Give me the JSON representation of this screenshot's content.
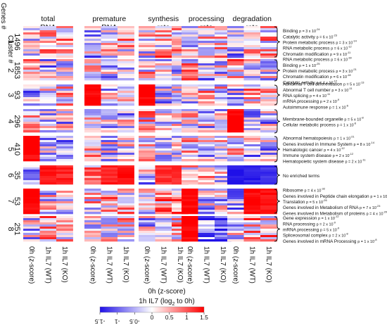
{
  "chart_data": {
    "type": "heatmap",
    "row_axis_labels": [
      "Cluster #",
      "Genes #"
    ],
    "panels": [
      {
        "title": [
          "total",
          "RNA"
        ]
      },
      {
        "title": [
          "premature",
          "RNA"
        ]
      },
      {
        "title": [
          "synthesis",
          "rate"
        ]
      },
      {
        "title": [
          "processing",
          "rate"
        ]
      },
      {
        "title": [
          "degradation",
          "rate"
        ]
      }
    ],
    "columns": [
      "0h (z-score)",
      "1h IL7 (WT)",
      "1h IL7 (KO)"
    ],
    "clusters": [
      {
        "id": "1",
        "genes": "1496",
        "mean": [
          -0.2,
          0.3,
          0.2,
          -0.3,
          0.2,
          0.25,
          -0.1,
          0.3,
          0.3,
          -0.2,
          0.2,
          0.1,
          -0.3,
          0.1,
          0.2
        ],
        "terms": [
          [
            "Binding",
            "p = 3 x 10^-24"
          ],
          [
            "Catalytic activity",
            "p = 6 x 10^-23"
          ],
          [
            "Protein metabolic process",
            "p = 3 x 10^-14"
          ],
          [
            "RNA metabolic process",
            "p = 6 x 10^-12"
          ],
          [
            "Chromatin modification",
            "p = 9 x 10^-11"
          ]
        ]
      },
      {
        "id": "2",
        "genes": "1853",
        "mean": [
          0.1,
          -0.3,
          -0.2,
          0.2,
          -0.2,
          -0.2,
          0.1,
          -0.3,
          -0.2,
          0.2,
          -0.3,
          -0.2,
          0.3,
          0.0,
          -0.1
        ],
        "terms": [
          [
            "RNA metabolic process",
            "p = 6 x 10^-39"
          ],
          [
            "Binding",
            "p = 1 x 10^-25"
          ],
          [
            "Protein metabolic process",
            "p = 3 x 10^-21"
          ],
          [
            "Chromatin modification",
            "p = 6 x 10^-18"
          ],
          [
            "Catalytic activity",
            "p = 4 x 10^-12"
          ]
        ]
      },
      {
        "id": "3",
        "genes": "93",
        "mean": [
          -0.3,
          0.2,
          0.2,
          1.5,
          -0.1,
          -0.2,
          1.5,
          -0.2,
          -0.2,
          -0.2,
          0.2,
          0.1,
          -0.1,
          0.2,
          0.2
        ],
        "terms": [
          [
            "Abnormal T cell differentiation",
            "p = 5 x 10^-13"
          ],
          [
            "Abnormal T cell number",
            "p = 3 x 10^-11"
          ],
          [
            "RNA splicing",
            "p = 4 x 10^-11"
          ],
          [
            "mRNA processing",
            "p = 2 x 10^-9"
          ],
          [
            "Autoimmune response",
            "p = 1 x 10^-6"
          ]
        ]
      },
      {
        "id": "4",
        "genes": "296",
        "mean": [
          0.3,
          -0.2,
          -0.2,
          0.0,
          -0.3,
          -0.2,
          0.2,
          -0.3,
          -0.2,
          0.1,
          -0.2,
          -0.2,
          1.5,
          -0.3,
          -0.3
        ],
        "terms": [
          [
            "Membrane-bounded organelle",
            "p = 5 x 10^-8"
          ],
          [
            "Cellular metabolic process",
            "p = 1 x 10^-6"
          ]
        ]
      },
      {
        "id": "5",
        "genes": "410",
        "mean": [
          1.5,
          -0.2,
          -0.3,
          0.2,
          -0.1,
          0.0,
          0.2,
          0.1,
          0.0,
          0.2,
          -0.2,
          -0.1,
          0.1,
          -0.3,
          -0.3
        ],
        "terms": [
          [
            "Abnormal hematopoiesis",
            "p = 1 x 10^-21"
          ],
          [
            "Genes involved in Immune System",
            "p = 8 x 10^-14"
          ],
          [
            "Hematologic cancer",
            "p = 4 x 10^-12"
          ],
          [
            "Immune system disease",
            "p = 2 x 10^-12"
          ],
          [
            "Hematopoietic system disease",
            "p = 2 x 10^-11"
          ]
        ]
      },
      {
        "id": "6",
        "genes": "35",
        "mean": [
          -0.2,
          1.4,
          1.3,
          0.2,
          1.3,
          1.4,
          -0.3,
          1.2,
          1.3,
          0.0,
          0.2,
          0.1,
          -1.5,
          -1.4,
          -1.3
        ],
        "terms": [
          [
            "No enriched terms",
            ""
          ]
        ]
      },
      {
        "id": "7",
        "genes": "53",
        "mean": [
          1.5,
          0.0,
          -0.1,
          0.2,
          0.3,
          0.2,
          -0.2,
          0.6,
          0.4,
          1.5,
          -0.3,
          -0.2,
          -0.3,
          1.5,
          1.4
        ],
        "terms": [
          [
            "Ribosome",
            "p = 4 x 10^-32"
          ],
          [
            "Genes involved in Peptide chain elongation",
            "p = 1 x 10^-30"
          ],
          [
            "Translation",
            "p = 5 x 10^-26"
          ],
          [
            "Genes involved in Metabolism of RNA",
            "p = 7 x 10^-24"
          ],
          [
            "Genes involved in Metabolism of proteins",
            "p = 4 x 10^-20"
          ]
        ]
      },
      {
        "id": "8",
        "genes": "251",
        "mean": [
          -0.1,
          0.3,
          0.3,
          -0.2,
          0.2,
          0.3,
          -0.2,
          0.2,
          0.3,
          1.5,
          -1.0,
          -0.8,
          -0.2,
          0.3,
          0.3
        ],
        "terms": [
          [
            "Gene expression",
            "p = 1 x 10^-12"
          ],
          [
            "RNA processing",
            "p = 2 x 10^-9"
          ],
          [
            "mRNA processing",
            "p = 5 x 10^-9"
          ],
          [
            "Spliceosomal complex",
            "p = 2 x 10^-8"
          ],
          [
            "Genes involved in mRNA Processing",
            "p = 1 x 10^-8"
          ]
        ]
      }
    ],
    "colorbar": {
      "title": "0h (z-score)",
      "subtitle_pre": "1h IL7 (log",
      "subtitle_sub": "2",
      "subtitle_post": " to 0h)",
      "range": [
        -1.5,
        1.5
      ],
      "ticks": [
        "-1.5",
        "-1",
        "-0.5",
        "0",
        "0.5",
        "1",
        "1.5"
      ],
      "colors": [
        "#1f10e8",
        "#ffffff",
        "#ff0000"
      ]
    }
  }
}
